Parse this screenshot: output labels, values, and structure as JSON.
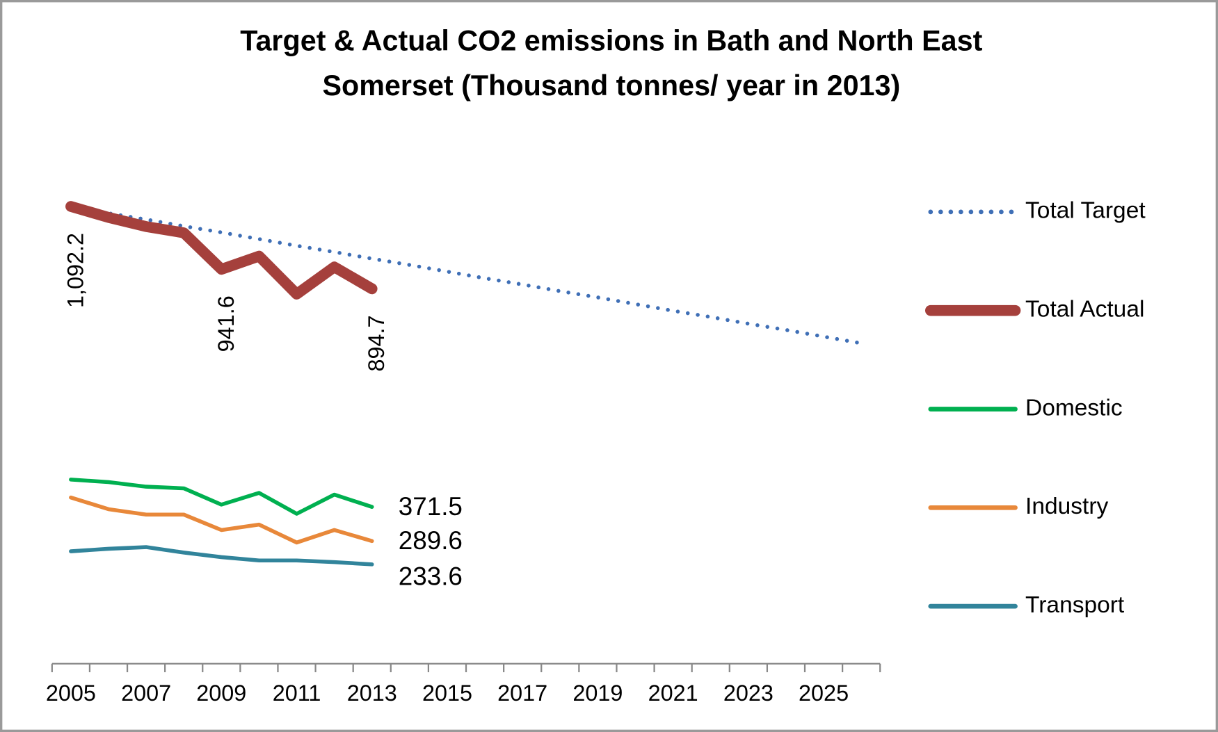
{
  "chart_data": {
    "type": "line",
    "title": [
      "Target & Actual CO2 emissions in Bath and North East",
      "Somerset  (Thousand tonnes/ year in 2013)"
    ],
    "categories": [
      "2005",
      null,
      "2007",
      null,
      "2009",
      null,
      "2011",
      null,
      "2013",
      null,
      "2015",
      null,
      "2017",
      null,
      "2019",
      null,
      "2021",
      null,
      "2023",
      null,
      "2025",
      null
    ],
    "ylim": [
      0,
      1250
    ],
    "legend": "right",
    "series": [
      {
        "name": "Total Target",
        "color": "#3f6fb6",
        "style": "dotted",
        "values": [
          1092,
          1076,
          1061,
          1045,
          1030,
          1014,
          998,
          983,
          967,
          952,
          936,
          920,
          905,
          889,
          874,
          858,
          842,
          827,
          811,
          796,
          780,
          764
        ]
      },
      {
        "name": "Total Actual",
        "color": "#a5403c",
        "values": [
          1092.2,
          1066,
          1044,
          1029,
          941.6,
          973,
          882,
          947,
          894.7,
          null,
          null,
          null,
          null,
          null,
          null,
          null,
          null,
          null,
          null,
          null,
          null,
          null
        ],
        "value_labels": [
          "1,092.2",
          null,
          null,
          null,
          "941.6",
          null,
          null,
          null,
          "894.7",
          null,
          null,
          null,
          null,
          null,
          null,
          null,
          null,
          null,
          null,
          null,
          null,
          null
        ]
      },
      {
        "name": "Domestic",
        "color": "#00b050",
        "values": [
          437,
          431,
          420,
          416,
          377,
          405,
          355,
          401,
          371.5,
          null,
          null,
          null,
          null,
          null,
          null,
          null,
          null,
          null,
          null,
          null,
          null,
          null
        ]
      },
      {
        "name": "Industry",
        "color": "#e8883a",
        "values": [
          394,
          366,
          353,
          353,
          316,
          329,
          286,
          316,
          289.6,
          null,
          null,
          null,
          null,
          null,
          null,
          null,
          null,
          null,
          null,
          null,
          null,
          null
        ]
      },
      {
        "name": "Transport",
        "color": "#31849b",
        "values": [
          265,
          271,
          275,
          262,
          251,
          243,
          243,
          239,
          233.6,
          null,
          null,
          null,
          null,
          null,
          null,
          null,
          null,
          null,
          null,
          null,
          null,
          null
        ]
      }
    ]
  }
}
